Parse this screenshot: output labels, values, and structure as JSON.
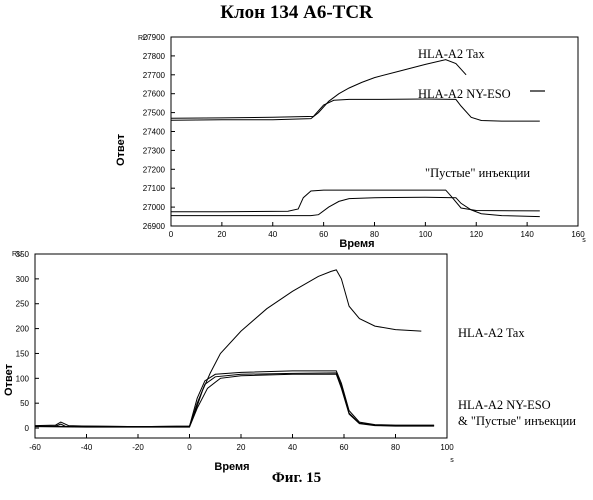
{
  "figure": {
    "title": "Клон 134 A6-TCR",
    "caption": "Фиг. 15"
  },
  "chart_data": [
    {
      "type": "line",
      "title": "",
      "xlabel": "Время",
      "ylabel": "Ответ",
      "x_unit": "s",
      "y_unit": "RU",
      "xlim": [
        0,
        160
      ],
      "ylim": [
        26900,
        27900
      ],
      "xticks": [
        0,
        20,
        40,
        60,
        80,
        100,
        120,
        140,
        160
      ],
      "yticks": [
        26900,
        27000,
        27100,
        27200,
        27300,
        27400,
        27500,
        27600,
        27700,
        27800,
        27900
      ],
      "annotations": [
        "HLA-A2 Tax",
        "HLA-A2 NY-ESO",
        "\"Пустые\" инъекции"
      ],
      "series": [
        {
          "x": [
            0,
            20,
            40,
            55,
            58,
            62,
            66,
            70,
            75,
            80,
            90,
            100,
            108,
            112,
            116
          ],
          "y": [
            27460,
            27462,
            27462,
            27468,
            27500,
            27560,
            27600,
            27630,
            27660,
            27685,
            27720,
            27755,
            27780,
            27760,
            27700
          ]
        },
        {
          "x": [
            0,
            20,
            40,
            56,
            60,
            64,
            70,
            80,
            100,
            112,
            114,
            118,
            122,
            130,
            145
          ],
          "y": [
            27470,
            27472,
            27475,
            27480,
            27540,
            27565,
            27570,
            27570,
            27572,
            27570,
            27535,
            27475,
            27458,
            27455,
            27455
          ]
        },
        {
          "x": [
            0,
            20,
            46,
            50,
            52,
            55,
            60,
            80,
            108,
            110,
            114,
            120,
            145
          ],
          "y": [
            26975,
            26975,
            26978,
            26990,
            27050,
            27085,
            27090,
            27090,
            27090,
            27060,
            26995,
            26982,
            26980
          ]
        },
        {
          "x": [
            0,
            20,
            55,
            58,
            62,
            66,
            70,
            80,
            100,
            112,
            114,
            118,
            122,
            130,
            145
          ],
          "y": [
            26955,
            26955,
            26955,
            26960,
            27000,
            27030,
            27045,
            27050,
            27052,
            27050,
            27020,
            26985,
            26965,
            26955,
            26950
          ]
        }
      ]
    },
    {
      "type": "line",
      "title": "",
      "xlabel": "Время",
      "ylabel": "Ответ",
      "x_unit": "s",
      "y_unit": "RU",
      "xlim": [
        -60,
        100
      ],
      "ylim": [
        -20,
        350
      ],
      "xticks": [
        -60,
        -40,
        -20,
        0,
        20,
        40,
        60,
        80,
        100
      ],
      "yticks": [
        0,
        50,
        100,
        150,
        200,
        250,
        300,
        350
      ],
      "annotations": [
        "HLA-A2 Tax",
        "HLA-A2 NY-ESO",
        "& \"Пустые\" инъекции"
      ],
      "series": [
        {
          "x": [
            -60,
            -52,
            -50,
            -48,
            -40,
            -20,
            0,
            2,
            5,
            8,
            12,
            20,
            30,
            40,
            50,
            55,
            57,
            59,
            62,
            66,
            72,
            80,
            90
          ],
          "y": [
            3,
            4,
            8,
            3,
            4,
            3,
            4,
            30,
            75,
            110,
            150,
            195,
            240,
            275,
            305,
            315,
            318,
            300,
            245,
            220,
            205,
            198,
            195
          ]
        },
        {
          "x": [
            -60,
            -52,
            -50,
            -47,
            -40,
            -20,
            0,
            3,
            6,
            10,
            20,
            40,
            57,
            59,
            62,
            66,
            72,
            80,
            95
          ],
          "y": [
            5,
            6,
            12,
            5,
            4,
            3,
            4,
            60,
            95,
            108,
            112,
            115,
            115,
            90,
            35,
            12,
            7,
            6,
            6
          ]
        },
        {
          "x": [
            -60,
            -40,
            -20,
            0,
            3,
            6,
            10,
            20,
            40,
            57,
            59,
            62,
            66,
            72,
            80,
            95
          ],
          "y": [
            4,
            3,
            3,
            3,
            50,
            88,
            103,
            108,
            110,
            111,
            85,
            30,
            10,
            6,
            5,
            5
          ]
        },
        {
          "x": [
            -60,
            -40,
            -20,
            0,
            3,
            7,
            12,
            20,
            40,
            57,
            59,
            62,
            66,
            72,
            80,
            95
          ],
          "y": [
            3,
            2,
            2,
            2,
            40,
            80,
            100,
            105,
            108,
            108,
            80,
            28,
            9,
            5,
            4,
            4
          ]
        }
      ]
    }
  ]
}
